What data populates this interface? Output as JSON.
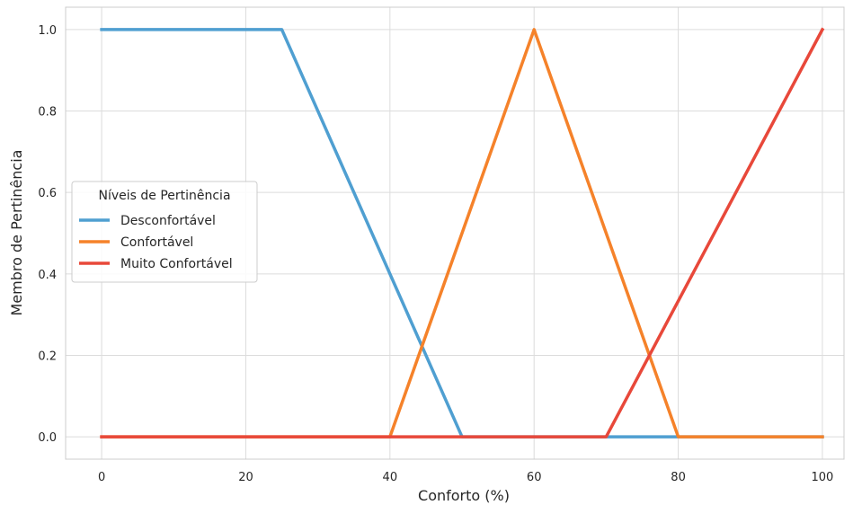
{
  "chart_data": {
    "type": "line",
    "xlabel": "Conforto (%)",
    "ylabel": "Membro de Pertinência",
    "xlim": [
      -5,
      103
    ],
    "ylim": [
      -0.055,
      1.055
    ],
    "xticks": [
      0,
      20,
      40,
      60,
      80,
      100
    ],
    "xtick_labels": [
      "0",
      "20",
      "40",
      "60",
      "80",
      "100"
    ],
    "yticks": [
      0.0,
      0.2,
      0.4,
      0.6,
      0.8,
      1.0
    ],
    "ytick_labels": [
      "0.0",
      "0.2",
      "0.4",
      "0.6",
      "0.8",
      "1.0"
    ],
    "grid": true,
    "legend": {
      "title": "Níveis de Pertinência",
      "position": "center-left"
    },
    "series": [
      {
        "name": "Desconfortável",
        "color": "#4f9fd1",
        "x": [
          0,
          25,
          50,
          70,
          80,
          100
        ],
        "y": [
          1.0,
          1.0,
          0.0,
          0.0,
          0.0,
          0.0
        ]
      },
      {
        "name": "Confortável",
        "color": "#f5822a",
        "x": [
          0,
          40,
          60,
          80,
          100
        ],
        "y": [
          0.0,
          0.0,
          1.0,
          0.0,
          0.0
        ]
      },
      {
        "name": "Muito Confortável",
        "color": "#e8483a",
        "x": [
          0,
          70,
          100
        ],
        "y": [
          0.0,
          0.0,
          1.0
        ]
      }
    ]
  }
}
